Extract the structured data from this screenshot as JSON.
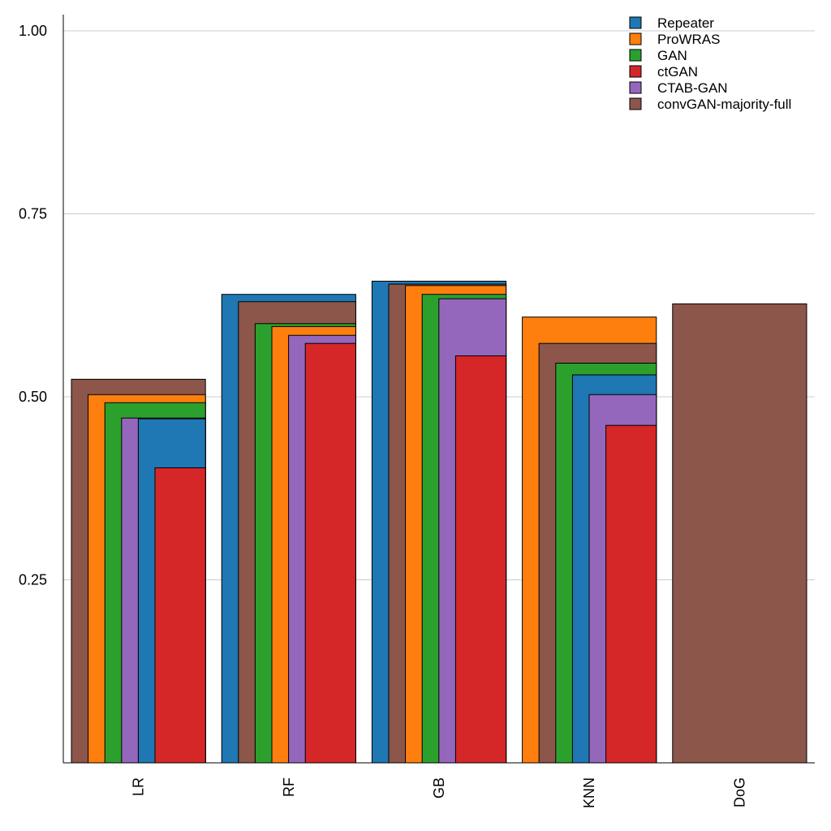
{
  "chart_data": {
    "type": "bar",
    "title": "",
    "xlabel": "",
    "ylabel": "",
    "ylim": [
      0,
      1.02
    ],
    "grid": true,
    "legend_position": "top-right",
    "yticks": [
      "0.25",
      "0.50",
      "0.75",
      "1.00"
    ],
    "categories": [
      "LR",
      "RF",
      "GB",
      "KNN",
      "DoG"
    ],
    "series": [
      {
        "name": "Repeater",
        "color": "#1f77b4",
        "values": [
          0.47,
          0.64,
          0.658,
          0.53,
          null
        ]
      },
      {
        "name": "ProWRAS",
        "color": "#ff7f0e",
        "values": [
          0.503,
          0.596,
          0.652,
          0.609,
          null
        ]
      },
      {
        "name": "GAN",
        "color": "#2ca02c",
        "values": [
          0.492,
          0.6,
          0.64,
          0.546,
          null
        ]
      },
      {
        "name": "ctGAN",
        "color": "#d62728",
        "values": [
          0.403,
          0.573,
          0.556,
          0.461,
          null
        ]
      },
      {
        "name": "CTAB-GAN",
        "color": "#9467bd",
        "values": [
          0.471,
          0.584,
          0.634,
          0.503,
          null
        ]
      },
      {
        "name": "convGAN-majority-full",
        "color": "#8c564b",
        "values": [
          0.524,
          0.63,
          0.654,
          0.573,
          0.627
        ]
      }
    ]
  }
}
